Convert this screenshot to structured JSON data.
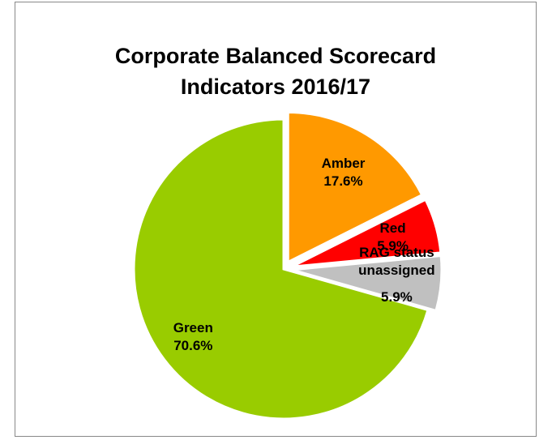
{
  "chart_data": {
    "type": "pie",
    "title": "Corporate Balanced Scorecard Indicators 2016/17",
    "categories": [
      "Amber",
      "Red",
      "RAG status unassigned",
      "Green"
    ],
    "values": [
      17.6,
      5.9,
      5.9,
      70.6
    ],
    "value_labels": [
      "17.6%",
      "5.9%",
      "5.9%",
      "70.6%"
    ],
    "colors": [
      "#ff9900",
      "#ff0000",
      "#c0c0c0",
      "#99cc00"
    ]
  }
}
